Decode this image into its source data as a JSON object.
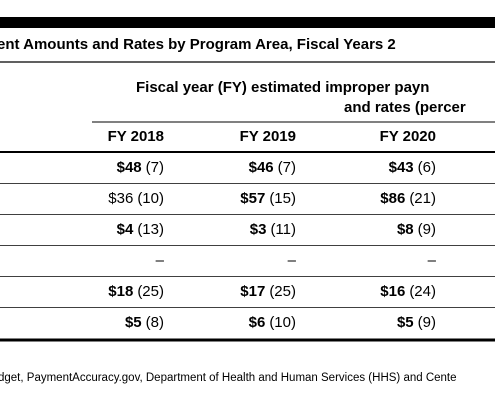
{
  "table": {
    "title": "ent Amounts and Rates by Program Area, Fiscal Years 2",
    "header": {
      "group_line1": "Fiscal year (FY) estimated improper payn",
      "group_line2": "and rates (percer",
      "columns": [
        "FY 2018",
        "FY 2019",
        "FY 2020"
      ]
    },
    "rows": [
      [
        {
          "amount": "$48",
          "rate": "(7)"
        },
        {
          "amount": "$46",
          "rate": "(7)"
        },
        {
          "amount": "$43",
          "rate": "(6)"
        }
      ],
      [
        {
          "amount": "$36",
          "rate": "(10)",
          "bold": false
        },
        {
          "amount": "$57",
          "rate": "(15)"
        },
        {
          "amount": "$86",
          "rate": "(21)"
        }
      ],
      [
        {
          "amount": "$4",
          "rate": "(13)"
        },
        {
          "amount": "$3",
          "rate": "(11)"
        },
        {
          "amount": "$8",
          "rate": "(9)"
        }
      ],
      [
        {
          "amount": "–"
        },
        {
          "amount": "–"
        },
        {
          "amount": "–"
        }
      ],
      [
        {
          "amount": "$18",
          "rate": "(25)"
        },
        {
          "amount": "$17",
          "rate": "(25)"
        },
        {
          "amount": "$16",
          "rate": "(24)"
        }
      ],
      [
        {
          "amount": "$5",
          "rate": "(8)"
        },
        {
          "amount": "$6",
          "rate": "(10)"
        },
        {
          "amount": "$5",
          "rate": "(9)"
        }
      ]
    ],
    "source": "dget, PaymentAccuracy.gov, Department of Health and Human Services (HHS) and Cente"
  }
}
